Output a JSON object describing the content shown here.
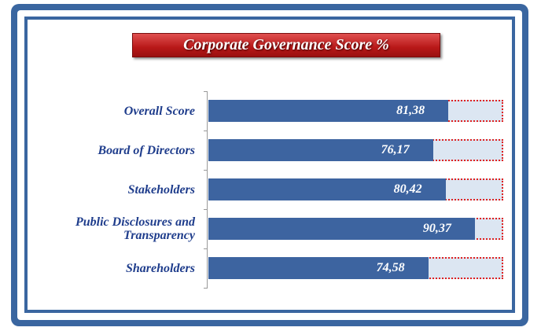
{
  "chart_data": {
    "type": "barh",
    "title": "Corporate Governance Score %",
    "categories": [
      "Overall Score",
      "Board of Directors",
      "Stakeholders",
      "Public Disclosures and Transparency",
      "Shareholders"
    ],
    "values": [
      81.38,
      76.17,
      80.42,
      90.37,
      74.58
    ],
    "value_labels": [
      "81,38",
      "76,17",
      "80,42",
      "90,37",
      "74,58"
    ],
    "color": "#3d64a0",
    "track_color": "#dce6f2",
    "xlim": [
      0,
      100
    ]
  }
}
